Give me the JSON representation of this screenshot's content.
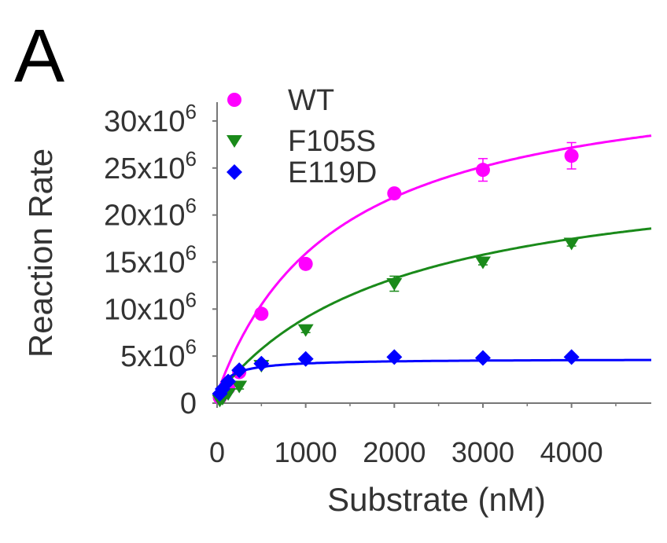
{
  "panel_label": "A",
  "chart_data": {
    "type": "scatter",
    "xlabel": "Substrate  (nM)",
    "ylabel": "Reaction Rate",
    "xlim": [
      0,
      4900
    ],
    "ylim": [
      0,
      32000000
    ],
    "x_ticks": [
      0,
      1000,
      2000,
      3000,
      4000
    ],
    "x_tick_labels": [
      "0",
      "1000",
      "2000",
      "3000",
      "4000"
    ],
    "y_ticks": [
      0,
      5000000,
      10000000,
      15000000,
      20000000,
      25000000,
      30000000
    ],
    "y_tick_labels": [
      {
        "base": "0",
        "exp": ""
      },
      {
        "base": "5x10",
        "exp": "6"
      },
      {
        "base": "10x10",
        "exp": "6"
      },
      {
        "base": "15x10",
        "exp": "6"
      },
      {
        "base": "20x10",
        "exp": "6"
      },
      {
        "base": "25x10",
        "exp": "6"
      },
      {
        "base": "30x10",
        "exp": "6"
      }
    ],
    "grid": false,
    "legend_position": "top-left",
    "series": [
      {
        "name": "WT",
        "color": "#ff00ff",
        "marker": "circle",
        "x": [
          31,
          62,
          125,
          250,
          500,
          1000,
          2000,
          3000,
          4000
        ],
        "y": [
          600000,
          1000000,
          1600000,
          3300000,
          9500000,
          14800000,
          22300000,
          24800000,
          26300000
        ],
        "err": [
          0,
          0,
          0,
          300000,
          200000,
          300000,
          300000,
          1200000,
          1400000
        ],
        "fit": {
          "vmax": 36000000,
          "km": 1350,
          "c0": 1000000
        }
      },
      {
        "name": "F105S",
        "color": "#1a8a1a",
        "marker": "triangle-down",
        "x": [
          31,
          62,
          125,
          250,
          500,
          1000,
          2000,
          3000,
          4000
        ],
        "y": [
          300000,
          500000,
          1000000,
          1800000,
          4000000,
          7800000,
          12700000,
          15000000,
          17000000
        ],
        "err": [
          0,
          0,
          0,
          300000,
          200000,
          300000,
          800000,
          300000,
          300000
        ],
        "fit": {
          "vmax": 26000000,
          "km": 2050,
          "c0": 800000
        }
      },
      {
        "name": "E119D",
        "color": "#0000ff",
        "marker": "diamond",
        "x": [
          31,
          62,
          125,
          250,
          500,
          1000,
          2000,
          3000,
          4000
        ],
        "y": [
          1000000,
          1500000,
          2300000,
          3500000,
          4200000,
          4700000,
          4900000,
          4800000,
          4900000
        ],
        "err": [
          0,
          0,
          0,
          0,
          0,
          0,
          0,
          0,
          0
        ],
        "fit": {
          "vmax": 4700000,
          "km": 150,
          "c0": 1000000
        }
      }
    ]
  }
}
